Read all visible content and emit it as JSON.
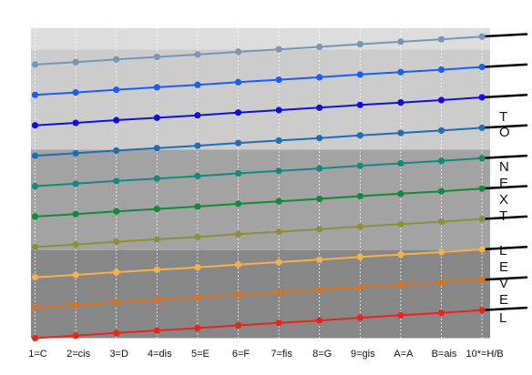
{
  "chart_data": {
    "type": "line",
    "title": "",
    "xlabel": "",
    "ylabel": "",
    "categories": [
      "1=C",
      "2=cis",
      "3=D",
      "4=dis",
      "5=E",
      "6=F",
      "7=fis",
      "8=G",
      "9=gis",
      "A=A",
      "B=ais",
      "10*=H/B"
    ],
    "ylim": [
      0,
      10.2
    ],
    "grid": "vertical dotted",
    "bands": [
      {
        "from": 0,
        "to": 2.9,
        "color": "#878787"
      },
      {
        "from": 2.9,
        "to": 6.2,
        "color": "#a3a3a3"
      },
      {
        "from": 6.2,
        "to": 9.5,
        "color": "#cccccc"
      },
      {
        "from": 9.5,
        "to": 10.2,
        "color": "#dddddd"
      }
    ],
    "series": [
      {
        "color": "#e8251b",
        "values": [
          0.0,
          0.08,
          0.17,
          0.25,
          0.33,
          0.42,
          0.5,
          0.58,
          0.67,
          0.75,
          0.83,
          0.92
        ],
        "extension_end": 1.0
      },
      {
        "color": "#d97320",
        "values": [
          1.0,
          1.08,
          1.17,
          1.25,
          1.33,
          1.42,
          1.5,
          1.58,
          1.67,
          1.75,
          1.83,
          1.92
        ],
        "extension_end": 2.0
      },
      {
        "color": "#f5b14b",
        "values": [
          2.0,
          2.08,
          2.17,
          2.25,
          2.33,
          2.42,
          2.5,
          2.58,
          2.67,
          2.75,
          2.83,
          2.92
        ],
        "extension_end": 3.0
      },
      {
        "color": "#8e8f3a",
        "values": [
          3.0,
          3.08,
          3.17,
          3.25,
          3.33,
          3.42,
          3.5,
          3.58,
          3.67,
          3.75,
          3.83,
          3.92
        ],
        "extension_end": 4.0
      },
      {
        "color": "#118a3c",
        "values": [
          4.0,
          4.08,
          4.17,
          4.25,
          4.33,
          4.42,
          4.5,
          4.58,
          4.67,
          4.75,
          4.83,
          4.92
        ],
        "extension_end": 5.0
      },
      {
        "color": "#128a7e",
        "values": [
          5.0,
          5.08,
          5.17,
          5.25,
          5.33,
          5.42,
          5.5,
          5.58,
          5.67,
          5.75,
          5.83,
          5.92
        ],
        "extension_end": 6.0
      },
      {
        "color": "#1f6db3",
        "values": [
          6.0,
          6.08,
          6.17,
          6.25,
          6.33,
          6.42,
          6.5,
          6.58,
          6.67,
          6.75,
          6.83,
          6.92
        ],
        "extension_end": 7.0
      },
      {
        "color": "#1310d6",
        "values": [
          7.0,
          7.08,
          7.17,
          7.25,
          7.33,
          7.42,
          7.5,
          7.58,
          7.67,
          7.75,
          7.83,
          7.92
        ],
        "extension_end": 8.0
      },
      {
        "color": "#1a5ff2",
        "values": [
          8.0,
          8.08,
          8.17,
          8.25,
          8.33,
          8.42,
          8.5,
          8.58,
          8.67,
          8.75,
          8.83,
          8.92
        ],
        "extension_end": 9.0
      },
      {
        "color": "#7697b8",
        "values": [
          9.0,
          9.08,
          9.17,
          9.25,
          9.33,
          9.42,
          9.5,
          9.58,
          9.67,
          9.75,
          9.83,
          9.92
        ],
        "extension_end": 10.0
      }
    ],
    "extension_color": "#000000",
    "side_text": [
      "T",
      "O",
      "N",
      "E",
      "X",
      "T",
      "L",
      "E",
      "V",
      "E",
      "L"
    ]
  }
}
